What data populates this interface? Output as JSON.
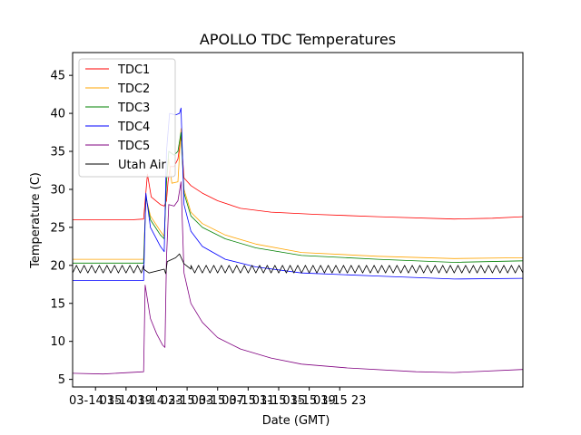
{
  "chart_data": {
    "type": "line",
    "title": "APOLLO TDC Temperatures",
    "xlabel": "Date (GMT)",
    "ylabel": "Temperature (C)",
    "xlim": [
      0,
      59
    ],
    "ylim": [
      4,
      48
    ],
    "x_unit": "hours since 03-14 12:00 GMT",
    "xticks": [
      {
        "x": 3,
        "label": "03-14 15"
      },
      {
        "x": 7,
        "label": "03-14 19"
      },
      {
        "x": 11,
        "label": "03-14 23"
      },
      {
        "x": 15,
        "label": "03-15 03"
      },
      {
        "x": 19,
        "label": "03-15 07"
      },
      {
        "x": 23,
        "label": "03-15 11"
      },
      {
        "x": 27,
        "label": "03-15 15"
      },
      {
        "x": 31,
        "label": "03-15 19"
      },
      {
        "x": 35,
        "label": "03-15 23"
      }
    ],
    "yticks": [
      5,
      10,
      15,
      20,
      25,
      30,
      35,
      40,
      45
    ],
    "legend_position": "upper-left",
    "series": [
      {
        "name": "TDC1",
        "color": "#ff0000",
        "points": [
          [
            0,
            26.0
          ],
          [
            7.8,
            26.0
          ],
          [
            9.3,
            26.1
          ],
          [
            9.8,
            32.0
          ],
          [
            10.3,
            29.0
          ],
          [
            11.5,
            28.0
          ],
          [
            12.0,
            27.8
          ],
          [
            12.3,
            28.5
          ],
          [
            12.5,
            31.0
          ],
          [
            12.8,
            33.0
          ],
          [
            13.3,
            33.0
          ],
          [
            13.8,
            34.0
          ],
          [
            14.2,
            37.0
          ],
          [
            14.6,
            31.5
          ],
          [
            15.5,
            30.5
          ],
          [
            17,
            29.5
          ],
          [
            19,
            28.5
          ],
          [
            22,
            27.5
          ],
          [
            26,
            27.0
          ],
          [
            32,
            26.7
          ],
          [
            40,
            26.4
          ],
          [
            50,
            26.1
          ],
          [
            55,
            26.2
          ],
          [
            59,
            26.4
          ]
        ]
      },
      {
        "name": "TDC2",
        "color": "#ffa500",
        "points": [
          [
            0,
            20.8
          ],
          [
            9.3,
            20.8
          ],
          [
            9.6,
            29.0
          ],
          [
            10.2,
            26.5
          ],
          [
            11.5,
            24.5
          ],
          [
            12.0,
            23.8
          ],
          [
            12.3,
            31.0
          ],
          [
            12.6,
            34.0
          ],
          [
            13.0,
            30.8
          ],
          [
            13.8,
            31.0
          ],
          [
            14.2,
            38.0
          ],
          [
            14.6,
            30.0
          ],
          [
            15.5,
            27.0
          ],
          [
            17,
            25.5
          ],
          [
            20,
            24.0
          ],
          [
            24,
            22.8
          ],
          [
            30,
            21.7
          ],
          [
            40,
            21.2
          ],
          [
            50,
            20.9
          ],
          [
            59,
            21.0
          ]
        ]
      },
      {
        "name": "TDC3",
        "color": "#008000",
        "points": [
          [
            0,
            20.3
          ],
          [
            9.3,
            20.3
          ],
          [
            9.6,
            29.0
          ],
          [
            10.2,
            26.0
          ],
          [
            11.5,
            24.0
          ],
          [
            12.0,
            23.5
          ],
          [
            12.3,
            31.0
          ],
          [
            12.6,
            35.0
          ],
          [
            13.3,
            34.5
          ],
          [
            13.8,
            35.0
          ],
          [
            14.2,
            37.5
          ],
          [
            14.6,
            29.5
          ],
          [
            15.5,
            26.5
          ],
          [
            17,
            25.0
          ],
          [
            20,
            23.5
          ],
          [
            24,
            22.3
          ],
          [
            30,
            21.3
          ],
          [
            40,
            20.8
          ],
          [
            50,
            20.4
          ],
          [
            59,
            20.6
          ]
        ]
      },
      {
        "name": "TDC4",
        "color": "#0000ff",
        "points": [
          [
            0,
            18.0
          ],
          [
            9.3,
            18.0
          ],
          [
            9.6,
            29.5
          ],
          [
            10.2,
            25.0
          ],
          [
            11.5,
            22.5
          ],
          [
            12.0,
            21.8
          ],
          [
            12.3,
            35.0
          ],
          [
            12.7,
            40.0
          ],
          [
            13.5,
            39.8
          ],
          [
            14.0,
            40.0
          ],
          [
            14.2,
            40.7
          ],
          [
            14.6,
            28.0
          ],
          [
            15.5,
            24.5
          ],
          [
            17,
            22.5
          ],
          [
            20,
            20.8
          ],
          [
            24,
            19.8
          ],
          [
            30,
            19.0
          ],
          [
            40,
            18.6
          ],
          [
            50,
            18.2
          ],
          [
            59,
            18.3
          ]
        ]
      },
      {
        "name": "TDC5",
        "color": "#800080",
        "points": [
          [
            0,
            5.8
          ],
          [
            4,
            5.7
          ],
          [
            9.3,
            6.0
          ],
          [
            9.5,
            17.4
          ],
          [
            10.2,
            13.0
          ],
          [
            11.0,
            11.0
          ],
          [
            11.8,
            9.5
          ],
          [
            12.1,
            9.2
          ],
          [
            12.3,
            21.0
          ],
          [
            12.6,
            28.0
          ],
          [
            13.3,
            27.8
          ],
          [
            13.8,
            28.5
          ],
          [
            14.2,
            31.0
          ],
          [
            14.6,
            19.0
          ],
          [
            15.5,
            15.0
          ],
          [
            17,
            12.5
          ],
          [
            19,
            10.5
          ],
          [
            22,
            9.0
          ],
          [
            26,
            7.8
          ],
          [
            30,
            7.0
          ],
          [
            36,
            6.5
          ],
          [
            45,
            6.0
          ],
          [
            50,
            5.9
          ],
          [
            59,
            6.3
          ]
        ]
      },
      {
        "name": "Utah Air",
        "color": "#000000",
        "sawtooth": {
          "x_start": 0,
          "x_end": 59,
          "period": 1.0,
          "low": 19.0,
          "high": 20.0
        },
        "points": [
          [
            9.3,
            19.5
          ],
          [
            10.0,
            19.0
          ],
          [
            12.0,
            19.5
          ],
          [
            12.2,
            18.9
          ],
          [
            12.4,
            20.5
          ],
          [
            13.5,
            21.0
          ],
          [
            14.0,
            21.5
          ],
          [
            14.6,
            20.2
          ],
          [
            15.5,
            19.5
          ]
        ]
      }
    ]
  }
}
